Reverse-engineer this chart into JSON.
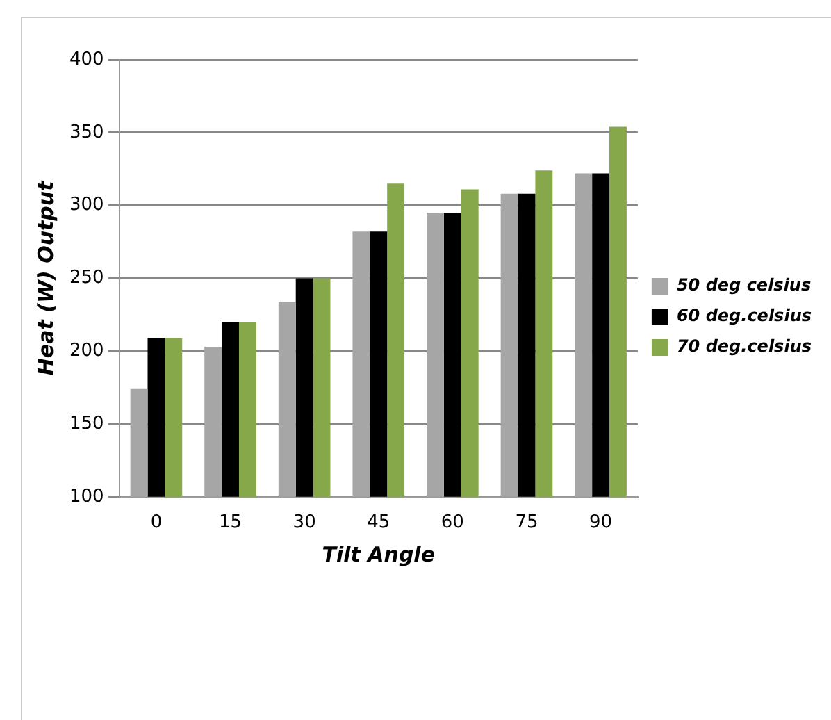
{
  "chart_data": {
    "type": "bar",
    "xlabel": "Tilt Angle",
    "ylabel": "Heat (W) Output",
    "categories": [
      "0",
      "15",
      "30",
      "45",
      "60",
      "75",
      "90"
    ],
    "series": [
      {
        "name": "50 deg celsius",
        "color": "#a6a6a6",
        "values": [
          174,
          203,
          234,
          282,
          295,
          308,
          322
        ]
      },
      {
        "name": "60 deg.celsius",
        "color": "#000000",
        "values": [
          209,
          220,
          250,
          282,
          295,
          308,
          322
        ]
      },
      {
        "name": "70 deg.celsius",
        "color": "#86a84a",
        "values": [
          209,
          220,
          250,
          315,
          311,
          324,
          354
        ]
      }
    ],
    "ylim": [
      100,
      400
    ],
    "yticks": [
      100,
      150,
      200,
      250,
      300,
      350,
      400
    ],
    "grid": "y",
    "legend": "right"
  }
}
